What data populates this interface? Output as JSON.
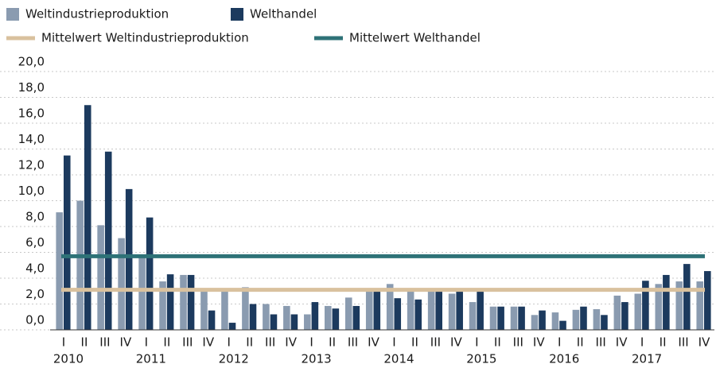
{
  "chart_data": {
    "type": "bar",
    "categories": [
      "I",
      "II",
      "III",
      "IV",
      "I",
      "II",
      "III",
      "IV",
      "I",
      "II",
      "III",
      "IV",
      "I",
      "II",
      "III",
      "IV",
      "I",
      "II",
      "III",
      "IV",
      "I",
      "II",
      "III",
      "IV",
      "I",
      "II",
      "III",
      "IV",
      "I",
      "II",
      "III",
      "IV"
    ],
    "years": [
      "2010",
      "2011",
      "2012",
      "2013",
      "2014",
      "2015",
      "2016",
      "2017"
    ],
    "series": [
      {
        "name": "Weltindustrieproduktion",
        "color": "#8a9bb0",
        "values": [
          9.1,
          10.0,
          8.1,
          7.1,
          5.7,
          3.75,
          4.25,
          3.0,
          3.0,
          3.3,
          2.0,
          1.85,
          1.2,
          1.85,
          2.5,
          3.0,
          3.55,
          3.0,
          3.0,
          2.8,
          2.15,
          1.8,
          1.8,
          1.15,
          1.35,
          1.55,
          1.6,
          2.65,
          2.8,
          3.55,
          3.75,
          3.75
        ]
      },
      {
        "name": "Welthandel",
        "color": "#1c3a5e",
        "values": [
          13.5,
          17.4,
          13.8,
          10.9,
          8.7,
          4.3,
          4.25,
          1.5,
          0.55,
          2.0,
          1.2,
          1.2,
          2.15,
          1.65,
          1.85,
          3.0,
          2.45,
          2.35,
          3.0,
          3.0,
          3.0,
          1.8,
          1.8,
          1.5,
          0.7,
          1.8,
          1.15,
          2.15,
          3.8,
          4.25,
          5.1,
          4.55
        ]
      }
    ],
    "lines": [
      {
        "name": "Mittelwert Weltindustrieproduktion",
        "color": "#d9c19e",
        "value": 3.1
      },
      {
        "name": "Mittelwert Welthandel",
        "color": "#2e7277",
        "value": 5.7
      }
    ],
    "ylim": [
      0,
      20
    ],
    "yticks": [
      {
        "value": 0,
        "label": "0,0"
      },
      {
        "value": 2,
        "label": "2,0"
      },
      {
        "value": 4,
        "label": "4,0"
      },
      {
        "value": 6,
        "label": "6,0"
      },
      {
        "value": 8,
        "label": "8,0"
      },
      {
        "value": 10,
        "label": "10,0"
      },
      {
        "value": 12,
        "label": "12,0"
      },
      {
        "value": 14,
        "label": "14,0"
      },
      {
        "value": 16,
        "label": "16,0"
      },
      {
        "value": 18,
        "label": "18,0"
      },
      {
        "value": 20,
        "label": "20,0"
      }
    ],
    "grid": true
  }
}
